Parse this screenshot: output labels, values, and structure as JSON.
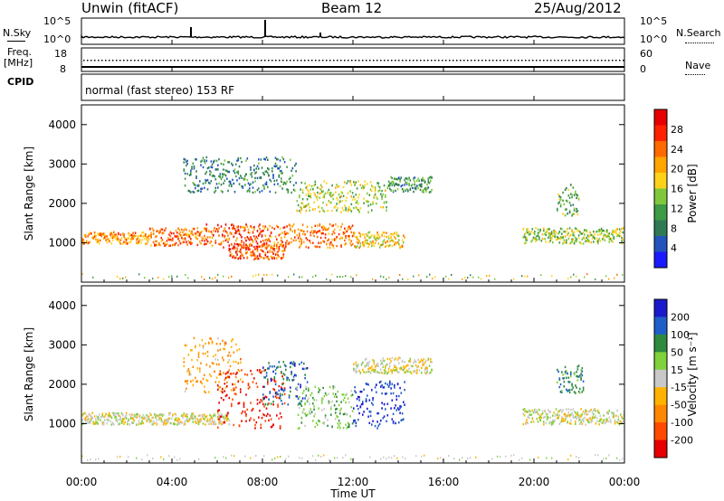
{
  "header": {
    "station": "Unwin (fitACF)",
    "beam": "Beam 12",
    "date": "25/Aug/2012"
  },
  "noise_panel": {
    "left_label": "N.Sky",
    "right_label": "N.Search",
    "left_ticks": [
      "10^5",
      "10^0"
    ],
    "right_ticks": [
      "10^5",
      "10^0"
    ],
    "right_legend_style": "dotted"
  },
  "freq_panel": {
    "left_label": "Freq.",
    "left_unit": "[MHz]",
    "right_label": "Nave",
    "left_ticks": [
      "18",
      "8"
    ],
    "right_ticks": [
      "60",
      "0"
    ],
    "right_legend_style": "dotted"
  },
  "cpid_panel": {
    "left_label": "CPID",
    "mode": "normal (fast stereo) 153 RF"
  },
  "x_axis": {
    "label": "Time UT",
    "ticks": [
      "00:00",
      "04:00",
      "08:00",
      "12:00",
      "16:00",
      "20:00",
      "00:00"
    ]
  },
  "colors": {
    "power_scale": [
      "#1a1aff",
      "#2255bb",
      "#2f7a55",
      "#3d9a45",
      "#7fc83b",
      "#ffd21a",
      "#ffa500",
      "#ff6a00",
      "#ff2200",
      "#e60000"
    ],
    "velocity_scale": [
      "#1a1acc",
      "#1f5fc8",
      "#2e8a3e",
      "#7fd23a",
      "#c8c8c8",
      "#ffb300",
      "#ff8800",
      "#ff4a00",
      "#e60000"
    ]
  },
  "chart_data": [
    {
      "type": "heatmap",
      "panel": "power",
      "title": "",
      "xlabel": "Time UT",
      "ylabel": "Slant Range [km]",
      "xlim": [
        0,
        24
      ],
      "ylim": [
        0,
        4500
      ],
      "y_ticks": [
        "1000",
        "2000",
        "3000",
        "4000"
      ],
      "colorbar": {
        "label": "Power [dB]",
        "ticks": [
          "4",
          "8",
          "12",
          "16",
          "20",
          "24",
          "28"
        ],
        "range": [
          0,
          30
        ]
      },
      "bands": [
        {
          "t_start": 0.0,
          "t_end": 3.0,
          "range_low": 1000,
          "range_high": 1300,
          "power_db": 20
        },
        {
          "t_start": 3.0,
          "t_end": 5.5,
          "range_low": 950,
          "range_high": 1400,
          "power_db": 22
        },
        {
          "t_start": 5.5,
          "t_end": 8.0,
          "range_low": 900,
          "range_high": 1500,
          "power_db": 24
        },
        {
          "t_start": 8.0,
          "t_end": 12.0,
          "range_low": 900,
          "range_high": 1500,
          "power_db": 22
        },
        {
          "t_start": 12.0,
          "t_end": 14.3,
          "range_low": 900,
          "range_high": 1300,
          "power_db": 18
        },
        {
          "t_start": 4.5,
          "t_end": 9.5,
          "range_low": 2300,
          "range_high": 3200,
          "power_db": 8
        },
        {
          "t_start": 9.5,
          "t_end": 13.5,
          "range_low": 1800,
          "range_high": 2600,
          "power_db": 14
        },
        {
          "t_start": 13.5,
          "t_end": 15.5,
          "range_low": 2300,
          "range_high": 2700,
          "power_db": 10
        },
        {
          "t_start": 6.5,
          "t_end": 9.0,
          "range_low": 600,
          "range_high": 1000,
          "power_db": 24
        },
        {
          "t_start": 19.5,
          "t_end": 24.0,
          "range_low": 1000,
          "range_high": 1400,
          "power_db": 14
        },
        {
          "t_start": 21.0,
          "t_end": 22.0,
          "range_low": 1700,
          "range_high": 2500,
          "power_db": 12
        }
      ]
    },
    {
      "type": "heatmap",
      "panel": "velocity",
      "title": "",
      "xlabel": "Time UT",
      "ylabel": "Slant Range [km]",
      "xlim": [
        0,
        24
      ],
      "ylim": [
        0,
        4500
      ],
      "y_ticks": [
        "1000",
        "2000",
        "3000",
        "4000"
      ],
      "colorbar": {
        "label": "Velocity [m s⁻¹]",
        "ticks": [
          "200",
          "100",
          "50",
          "15",
          "-15",
          "-50",
          "-100",
          "-200"
        ],
        "range": [
          -250,
          250
        ]
      },
      "bands": [
        {
          "t_start": 0.0,
          "t_end": 6.5,
          "range_low": 1000,
          "range_high": 1300,
          "velocity": 0
        },
        {
          "t_start": 4.5,
          "t_end": 7.0,
          "range_low": 1800,
          "range_high": 3200,
          "velocity": -80
        },
        {
          "t_start": 6.0,
          "t_end": 9.0,
          "range_low": 900,
          "range_high": 2400,
          "velocity": -200
        },
        {
          "t_start": 8.0,
          "t_end": 10.0,
          "range_low": 1500,
          "range_high": 2600,
          "velocity": 150
        },
        {
          "t_start": 9.5,
          "t_end": 12.0,
          "range_low": 900,
          "range_high": 2000,
          "velocity": 60
        },
        {
          "t_start": 12.0,
          "t_end": 14.3,
          "range_low": 900,
          "range_high": 2100,
          "velocity": 200
        },
        {
          "t_start": 12.0,
          "t_end": 15.5,
          "range_low": 2300,
          "range_high": 2700,
          "velocity": 0
        },
        {
          "t_start": 19.5,
          "t_end": 24.0,
          "range_low": 1000,
          "range_high": 1400,
          "velocity": 0
        },
        {
          "t_start": 21.0,
          "t_end": 22.2,
          "range_low": 1800,
          "range_high": 2500,
          "velocity": 120
        }
      ]
    }
  ]
}
